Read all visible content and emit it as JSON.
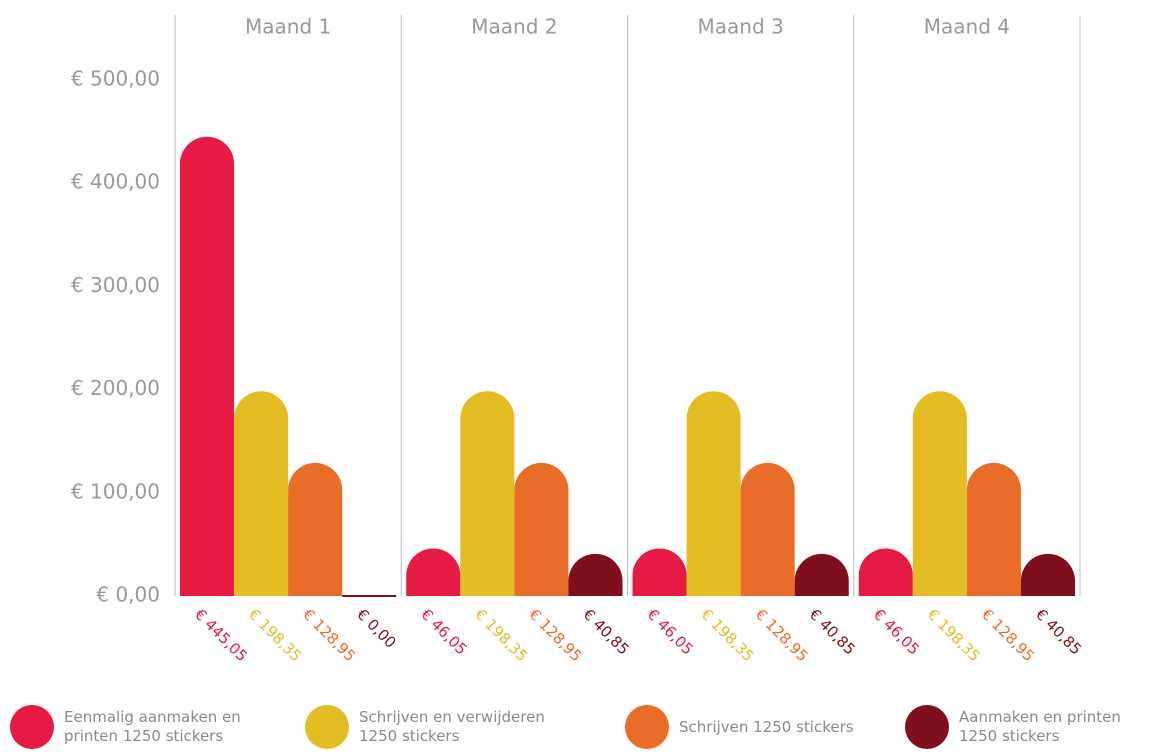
{
  "chart_data": {
    "type": "bar",
    "categories": [
      "Maand 1",
      "Maand 2",
      "Maand 3",
      "Maand 4"
    ],
    "series": [
      {
        "name": "Eenmalig aanmaken en printen 1250 stickers",
        "color": "#e61b44",
        "values": [
          445.05,
          46.05,
          46.05,
          46.05
        ],
        "value_labels": [
          "€ 445,05",
          "€ 46,05",
          "€ 46,05",
          "€ 46,05"
        ]
      },
      {
        "name": "Schrijven en verwijderen 1250 stickers",
        "color": "#e3bd23",
        "values": [
          198.35,
          198.35,
          198.35,
          198.35
        ],
        "value_labels": [
          "€ 198,35",
          "€ 198,35",
          "€ 198,35",
          "€ 198,35"
        ]
      },
      {
        "name": "Schrijven 1250 stickers",
        "color": "#e96d28",
        "values": [
          128.95,
          128.95,
          128.95,
          128.95
        ],
        "value_labels": [
          "€ 128,95",
          "€ 128,95",
          "€ 128,95",
          "€ 128,95"
        ]
      },
      {
        "name": "Aanmaken en printen 1250 stickers",
        "color": "#7f0f1c",
        "values": [
          0,
          40.85,
          40.85,
          40.85
        ],
        "value_labels": [
          "€ 0,00",
          "€ 40,85",
          "€ 40,85",
          "€ 40,85"
        ]
      }
    ],
    "ylim": [
      0,
      500
    ],
    "yticks": [
      {
        "value": 0,
        "label": "€ 0,00"
      },
      {
        "value": 100,
        "label": "€ 100,00"
      },
      {
        "value": 200,
        "label": "€ 200,00"
      },
      {
        "value": 300,
        "label": "€ 300,00"
      },
      {
        "value": 400,
        "label": "€ 400,00"
      },
      {
        "value": 500,
        "label": "€ 500,00"
      }
    ],
    "grid": false
  }
}
